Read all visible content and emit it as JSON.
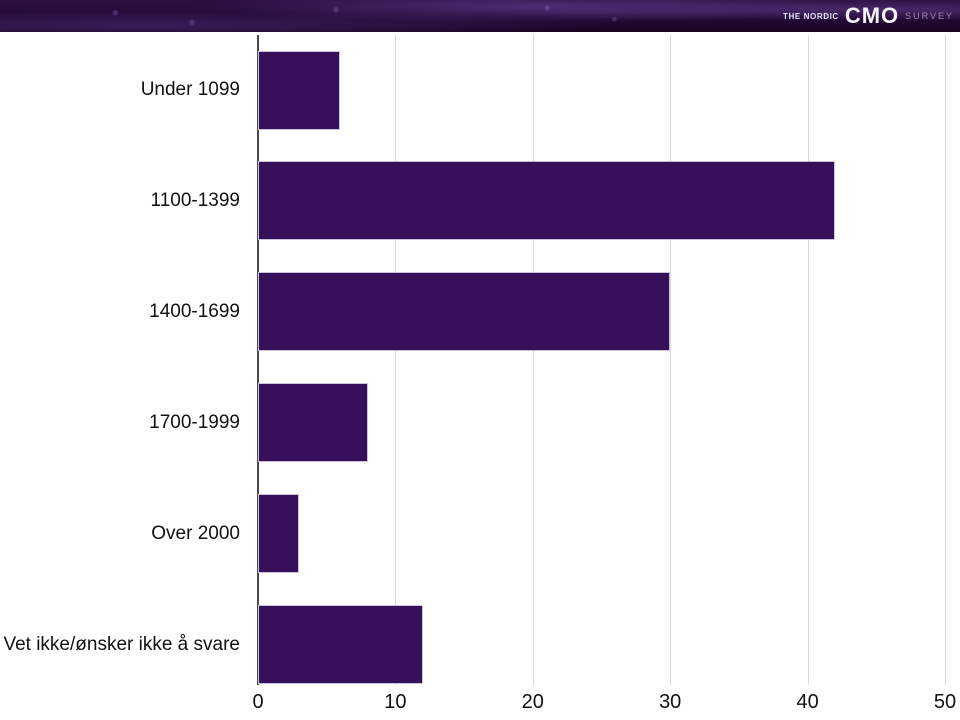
{
  "header": {
    "brand_prefix": "THE NORDIC",
    "brand_main": "CMO",
    "brand_suffix": "SURVEY"
  },
  "colors": {
    "bar_fill": "#36105A",
    "bar_border": "#CBC3D6",
    "gridline": "#D9D9D9",
    "axis_line": "#4A4A4A",
    "label_text": "#111111",
    "header_bg": "#220A33"
  },
  "chart_data": {
    "type": "bar",
    "orientation": "horizontal",
    "title": "",
    "xlabel": "",
    "ylabel": "",
    "categories": [
      "Under 1099",
      "1100-1399",
      "1400-1699",
      "1700-1999",
      "Over 2000",
      "Vet ikke/ønsker ikke å svare"
    ],
    "values": [
      6,
      42,
      30,
      8,
      3,
      12
    ],
    "x_ticks": [
      0,
      10,
      20,
      30,
      40,
      50
    ],
    "xlim": [
      0,
      50
    ],
    "grid": true,
    "legend": false
  }
}
